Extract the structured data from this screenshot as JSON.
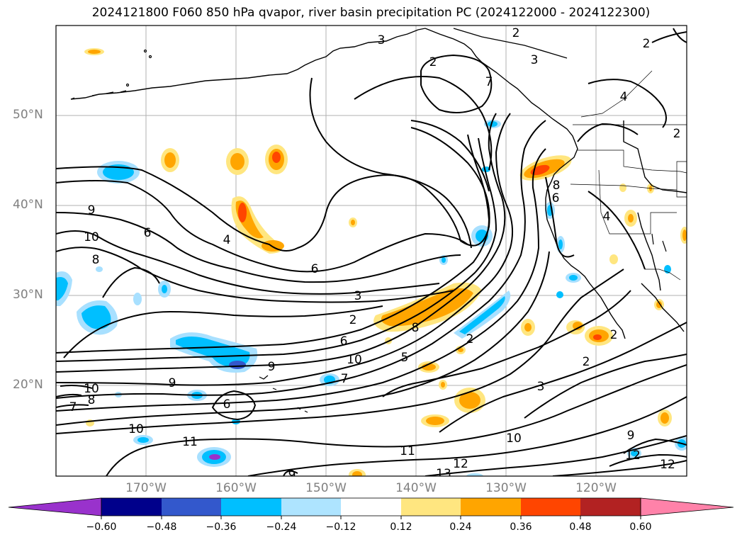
{
  "title": "2024121800 F060 850 hPa qvapor, river basin precipitation PC (2024122000 - 2024122300)",
  "map": {
    "lat_ticks": [
      "50°N",
      "40°N",
      "30°N",
      "20°N"
    ],
    "lon_ticks": [
      "170°W",
      "160°W",
      "150°W",
      "140°W",
      "130°W",
      "120°W"
    ],
    "contour_labels": [
      "3",
      "2",
      "3",
      "2",
      "2",
      "4",
      "2",
      "7",
      "9",
      "10",
      "8",
      "6",
      "4",
      "6",
      "3",
      "2",
      "6",
      "10",
      "9",
      "10",
      "8",
      "7",
      "9",
      "6",
      "5",
      "7",
      "8",
      "6",
      "2",
      "2",
      "3",
      "10",
      "11",
      "11",
      "12",
      "13",
      "9",
      "10",
      "9",
      "12",
      "12",
      "2",
      "8",
      "4"
    ],
    "colors": {
      "land_coast": "#000000",
      "grid": "#b0b0b0",
      "positive_low": "#ffe680",
      "positive_mid": "#ffa500",
      "positive_high": "#ff4500",
      "negative_low": "#a8e0ff",
      "negative_mid": "#00bfff",
      "negative_high": "#3358cc",
      "negative_max": "#9932cc"
    }
  },
  "colorbar": {
    "tick_labels": [
      "−0.60",
      "−0.48",
      "−0.36",
      "−0.24",
      "−0.12",
      "0.12",
      "0.24",
      "0.36",
      "0.48",
      "0.60"
    ],
    "segment_colors": [
      "#9932cc",
      "#00008b",
      "#3358cc",
      "#00bfff",
      "#aee4ff",
      "#ffffff",
      "#ffe680",
      "#ffa500",
      "#ff4500",
      "#b22222",
      "#ff82a9"
    ]
  }
}
